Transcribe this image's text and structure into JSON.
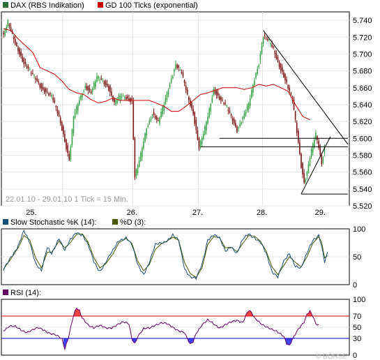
{
  "chart_data": [
    {
      "type": "candlestick",
      "legend": [
        {
          "label": "DAX (RBS Indikation)",
          "color": "#2f6e3a"
        },
        {
          "label": "GD 100 Ticks (exponential)",
          "color": "#cc0000"
        }
      ],
      "info": "22.01.10 - 29.01.10  1 Tick = 15 Min.",
      "x_tick_labels": [
        "25.",
        "26.",
        "27.",
        "28.",
        "29."
      ],
      "ylim": [
        5520,
        5750
      ],
      "y_ticks": [
        5740,
        5720,
        5700,
        5680,
        5660,
        5640,
        5620,
        5600,
        5580,
        5560,
        5540,
        5520
      ],
      "y_tick_labels": [
        "5.740",
        "5.720",
        "5.700",
        "5.680",
        "5.660",
        "5.640",
        "5.620",
        "5.600",
        "5.580",
        "5.560",
        "5.540",
        "5.520"
      ],
      "price_anchors": [
        [
          0,
          5723
        ],
        [
          3,
          5738
        ],
        [
          8,
          5712
        ],
        [
          14,
          5690
        ],
        [
          20,
          5675
        ],
        [
          26,
          5660
        ],
        [
          33,
          5650
        ],
        [
          38,
          5625
        ],
        [
          41,
          5605
        ],
        [
          45,
          5575
        ],
        [
          48,
          5625
        ],
        [
          52,
          5645
        ],
        [
          56,
          5662
        ],
        [
          60,
          5655
        ],
        [
          64,
          5672
        ],
        [
          68,
          5668
        ],
        [
          72,
          5660
        ],
        [
          76,
          5642
        ],
        [
          80,
          5650
        ],
        [
          84,
          5648
        ],
        [
          88,
          5645
        ],
        [
          90,
          5555
        ],
        [
          94,
          5580
        ],
        [
          98,
          5612
        ],
        [
          102,
          5630
        ],
        [
          106,
          5620
        ],
        [
          110,
          5640
        ],
        [
          114,
          5665
        ],
        [
          118,
          5688
        ],
        [
          122,
          5678
        ],
        [
          126,
          5650
        ],
        [
          130,
          5630
        ],
        [
          134,
          5590
        ],
        [
          137,
          5605
        ],
        [
          140,
          5625
        ],
        [
          144,
          5658
        ],
        [
          148,
          5648
        ],
        [
          152,
          5640
        ],
        [
          156,
          5625
        ],
        [
          160,
          5610
        ],
        [
          164,
          5625
        ],
        [
          168,
          5640
        ],
        [
          172,
          5670
        ],
        [
          175,
          5690
        ],
        [
          178,
          5722
        ],
        [
          182,
          5715
        ],
        [
          185,
          5705
        ],
        [
          188,
          5690
        ],
        [
          192,
          5675
        ],
        [
          195,
          5660
        ],
        [
          198,
          5645
        ],
        [
          200,
          5620
        ],
        [
          202,
          5595
        ],
        [
          204,
          5568
        ],
        [
          206,
          5548
        ],
        [
          208,
          5560
        ],
        [
          210,
          5578
        ],
        [
          212,
          5592
        ],
        [
          214,
          5604
        ],
        [
          216,
          5590
        ],
        [
          218,
          5570
        ],
        [
          220,
          5590
        ]
      ],
      "ema_anchors": [
        [
          0,
          5730
        ],
        [
          5,
          5728
        ],
        [
          10,
          5718
        ],
        [
          20,
          5702
        ],
        [
          25,
          5684
        ],
        [
          30,
          5680
        ],
        [
          35,
          5676
        ],
        [
          40,
          5668
        ],
        [
          45,
          5658
        ],
        [
          50,
          5654
        ],
        [
          55,
          5652
        ],
        [
          60,
          5646
        ],
        [
          65,
          5642
        ],
        [
          70,
          5644
        ],
        [
          75,
          5648
        ],
        [
          80,
          5645
        ],
        [
          90,
          5645
        ],
        [
          100,
          5645
        ],
        [
          110,
          5638
        ],
        [
          115,
          5632
        ],
        [
          120,
          5632
        ],
        [
          125,
          5638
        ],
        [
          130,
          5645
        ],
        [
          135,
          5652
        ],
        [
          140,
          5654
        ],
        [
          150,
          5660
        ],
        [
          160,
          5660
        ],
        [
          165,
          5658
        ],
        [
          170,
          5660
        ],
        [
          175,
          5664
        ],
        [
          180,
          5662
        ],
        [
          185,
          5664
        ],
        [
          190,
          5660
        ],
        [
          195,
          5656
        ],
        [
          200,
          5640
        ],
        [
          205,
          5626
        ],
        [
          210,
          5622
        ]
      ],
      "trend_lines": [
        {
          "from": [
            178,
            5728
          ],
          "to": [
            236,
            5593
          ]
        },
        {
          "from": [
            148,
            5600
          ],
          "to": [
            236,
            5600
          ]
        },
        {
          "from": [
            135,
            5590
          ],
          "to": [
            236,
            5590
          ]
        },
        {
          "from": [
            204,
            5534
          ],
          "to": [
            236,
            5534
          ]
        },
        {
          "from": [
            204,
            5534
          ],
          "to": [
            224,
            5602
          ]
        }
      ]
    },
    {
      "type": "line",
      "legend": [
        {
          "label": "Slow Stochastic %K (14):",
          "color": "#1a4f73"
        },
        {
          "label": "%D (3):",
          "color": "#4b5a00"
        }
      ],
      "ylim": [
        0,
        100
      ],
      "y_ticks": [
        100,
        50,
        0
      ],
      "y_tick_labels": [
        "100",
        "50",
        "0"
      ],
      "series": [
        {
          "name": "Slow Stochastic %K (14)",
          "anchors": [
            [
              0,
              25
            ],
            [
              5,
              50
            ],
            [
              10,
              70
            ],
            [
              14,
              95
            ],
            [
              18,
              75
            ],
            [
              22,
              40
            ],
            [
              26,
              25
            ],
            [
              30,
              65
            ],
            [
              33,
              55
            ],
            [
              38,
              85
            ],
            [
              42,
              60
            ],
            [
              46,
              80
            ],
            [
              50,
              95
            ],
            [
              54,
              90
            ],
            [
              58,
              70
            ],
            [
              62,
              40
            ],
            [
              66,
              25
            ],
            [
              70,
              40
            ],
            [
              75,
              60
            ],
            [
              79,
              80
            ],
            [
              84,
              85
            ],
            [
              88,
              70
            ],
            [
              92,
              35
            ],
            [
              96,
              20
            ],
            [
              100,
              40
            ],
            [
              104,
              70
            ],
            [
              108,
              75
            ],
            [
              112,
              80
            ],
            [
              116,
              88
            ],
            [
              120,
              78
            ],
            [
              124,
              30
            ],
            [
              128,
              15
            ],
            [
              132,
              10
            ],
            [
              136,
              35
            ],
            [
              140,
              82
            ],
            [
              144,
              90
            ],
            [
              148,
              82
            ],
            [
              152,
              60
            ],
            [
              156,
              70
            ],
            [
              160,
              55
            ],
            [
              164,
              80
            ],
            [
              168,
              92
            ],
            [
              172,
              85
            ],
            [
              176,
              75
            ],
            [
              180,
              55
            ],
            [
              184,
              25
            ],
            [
              188,
              15
            ],
            [
              192,
              40
            ],
            [
              196,
              55
            ],
            [
              200,
              35
            ],
            [
              204,
              30
            ],
            [
              208,
              55
            ],
            [
              212,
              80
            ],
            [
              216,
              90
            ],
            [
              218,
              70
            ],
            [
              220,
              40
            ],
            [
              222,
              55
            ]
          ]
        },
        {
          "name": "%D (3)",
          "anchors": [
            [
              0,
              28
            ],
            [
              5,
              46
            ],
            [
              10,
              66
            ],
            [
              14,
              88
            ],
            [
              18,
              80
            ],
            [
              22,
              48
            ],
            [
              26,
              30
            ],
            [
              30,
              58
            ],
            [
              33,
              58
            ],
            [
              38,
              78
            ],
            [
              42,
              66
            ],
            [
              46,
              76
            ],
            [
              50,
              90
            ],
            [
              54,
              91
            ],
            [
              58,
              76
            ],
            [
              62,
              48
            ],
            [
              66,
              30
            ],
            [
              70,
              37
            ],
            [
              75,
              55
            ],
            [
              79,
              75
            ],
            [
              84,
              83
            ],
            [
              88,
              74
            ],
            [
              92,
              42
            ],
            [
              96,
              25
            ],
            [
              100,
              36
            ],
            [
              104,
              63
            ],
            [
              108,
              73
            ],
            [
              112,
              78
            ],
            [
              116,
              85
            ],
            [
              120,
              80
            ],
            [
              124,
              40
            ],
            [
              128,
              20
            ],
            [
              132,
              13
            ],
            [
              136,
              30
            ],
            [
              140,
              72
            ],
            [
              144,
              86
            ],
            [
              148,
              84
            ],
            [
              152,
              66
            ],
            [
              156,
              67
            ],
            [
              160,
              59
            ],
            [
              164,
              74
            ],
            [
              168,
              88
            ],
            [
              172,
              87
            ],
            [
              176,
              78
            ],
            [
              180,
              60
            ],
            [
              184,
              32
            ],
            [
              188,
              18
            ],
            [
              192,
              34
            ],
            [
              196,
              50
            ],
            [
              200,
              40
            ],
            [
              204,
              32
            ],
            [
              208,
              50
            ],
            [
              212,
              74
            ],
            [
              216,
              86
            ],
            [
              218,
              76
            ],
            [
              220,
              48
            ],
            [
              222,
              52
            ]
          ]
        }
      ]
    },
    {
      "type": "line",
      "legend": [
        {
          "label": "RSI (14):",
          "color": "#660066"
        }
      ],
      "ylim": [
        0,
        100
      ],
      "y_ticks": [
        100,
        70,
        50,
        30,
        0
      ],
      "y_tick_labels": [
        "100",
        "70",
        "50",
        "30",
        "0"
      ],
      "levels": [
        70,
        30
      ],
      "series": [
        {
          "name": "RSI (14)",
          "anchors": [
            [
              0,
              45
            ],
            [
              4,
              52
            ],
            [
              8,
              50
            ],
            [
              12,
              45
            ],
            [
              16,
              42
            ],
            [
              20,
              45
            ],
            [
              24,
              48
            ],
            [
              28,
              45
            ],
            [
              32,
              40
            ],
            [
              36,
              35
            ],
            [
              40,
              28
            ],
            [
              42,
              12
            ],
            [
              44,
              28
            ],
            [
              46,
              50
            ],
            [
              48,
              72
            ],
            [
              50,
              84
            ],
            [
              52,
              78
            ],
            [
              54,
              65
            ],
            [
              58,
              55
            ],
            [
              62,
              50
            ],
            [
              66,
              52
            ],
            [
              70,
              48
            ],
            [
              74,
              50
            ],
            [
              78,
              55
            ],
            [
              82,
              58
            ],
            [
              86,
              56
            ],
            [
              88,
              30
            ],
            [
              90,
              22
            ],
            [
              92,
              34
            ],
            [
              96,
              46
            ],
            [
              100,
              48
            ],
            [
              104,
              55
            ],
            [
              108,
              58
            ],
            [
              112,
              55
            ],
            [
              116,
              50
            ],
            [
              120,
              45
            ],
            [
              124,
              40
            ],
            [
              126,
              28
            ],
            [
              128,
              18
            ],
            [
              130,
              24
            ],
            [
              132,
              40
            ],
            [
              136,
              55
            ],
            [
              140,
              62
            ],
            [
              144,
              55
            ],
            [
              148,
              50
            ],
            [
              152,
              55
            ],
            [
              156,
              58
            ],
            [
              160,
              62
            ],
            [
              164,
              60
            ],
            [
              166,
              72
            ],
            [
              168,
              80
            ],
            [
              170,
              75
            ],
            [
              172,
              65
            ],
            [
              176,
              58
            ],
            [
              180,
              52
            ],
            [
              184,
              45
            ],
            [
              188,
              40
            ],
            [
              192,
              35
            ],
            [
              194,
              22
            ],
            [
              196,
              18
            ],
            [
              198,
              28
            ],
            [
              202,
              45
            ],
            [
              206,
              60
            ],
            [
              208,
              75
            ],
            [
              210,
              80
            ],
            [
              212,
              70
            ],
            [
              214,
              55
            ],
            [
              216,
              52
            ]
          ]
        }
      ]
    }
  ],
  "credit": "© BÖRSE"
}
